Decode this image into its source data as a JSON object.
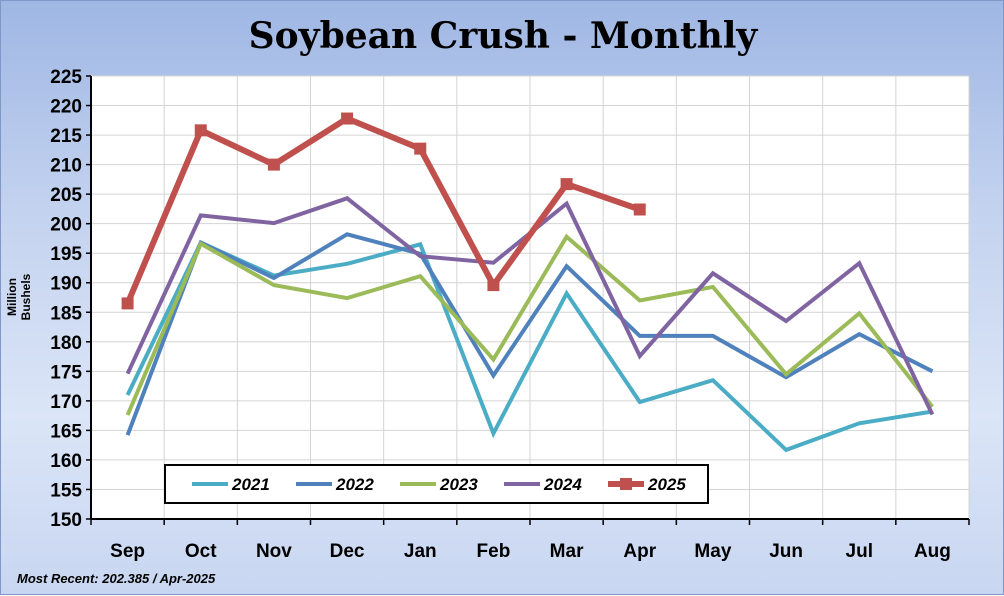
{
  "chart_data": {
    "type": "line",
    "title": "Soybean Crush - Monthly",
    "ylabel": "Million Bushels",
    "xlabel": "",
    "ylim": [
      150,
      225
    ],
    "y_ticks": [
      150,
      155,
      160,
      165,
      170,
      175,
      180,
      185,
      190,
      195,
      200,
      205,
      210,
      215,
      220,
      225
    ],
    "categories": [
      "Sep",
      "Oct",
      "Nov",
      "Dec",
      "Jan",
      "Feb",
      "Mar",
      "Apr",
      "May",
      "Jun",
      "Jul",
      "Aug"
    ],
    "grid": true,
    "legend_position": "bottom-left",
    "series": [
      {
        "name": "2021",
        "color": "#4bacc6",
        "marker": "none",
        "values": [
          171.0,
          196.8,
          191.2,
          193.2,
          196.5,
          164.5,
          188.2,
          169.8,
          173.5,
          161.7,
          166.2,
          168.2
        ]
      },
      {
        "name": "2022",
        "color": "#4f81bd",
        "marker": "none",
        "values": [
          164.2,
          196.8,
          190.8,
          198.2,
          194.9,
          174.3,
          192.8,
          181.0,
          181.0,
          174.0,
          181.3,
          175.0
        ]
      },
      {
        "name": "2023",
        "color": "#9bbb59",
        "marker": "none",
        "values": [
          167.6,
          196.6,
          189.6,
          187.4,
          191.1,
          177.0,
          197.8,
          187.0,
          189.3,
          174.5,
          184.8,
          169.0
        ]
      },
      {
        "name": "2024",
        "color": "#8064a2",
        "marker": "none",
        "values": [
          174.6,
          201.4,
          200.1,
          204.3,
          194.5,
          193.4,
          203.4,
          177.6,
          191.6,
          183.5,
          193.3,
          167.7
        ]
      },
      {
        "name": "2025",
        "color": "#c0504d",
        "marker": "square",
        "values": [
          186.5,
          215.8,
          210.0,
          217.8,
          212.7,
          189.6,
          206.7,
          202.4,
          null,
          null,
          null,
          null
        ]
      }
    ]
  },
  "footnote": "Most Recent: 202.385  / Apr-2025"
}
